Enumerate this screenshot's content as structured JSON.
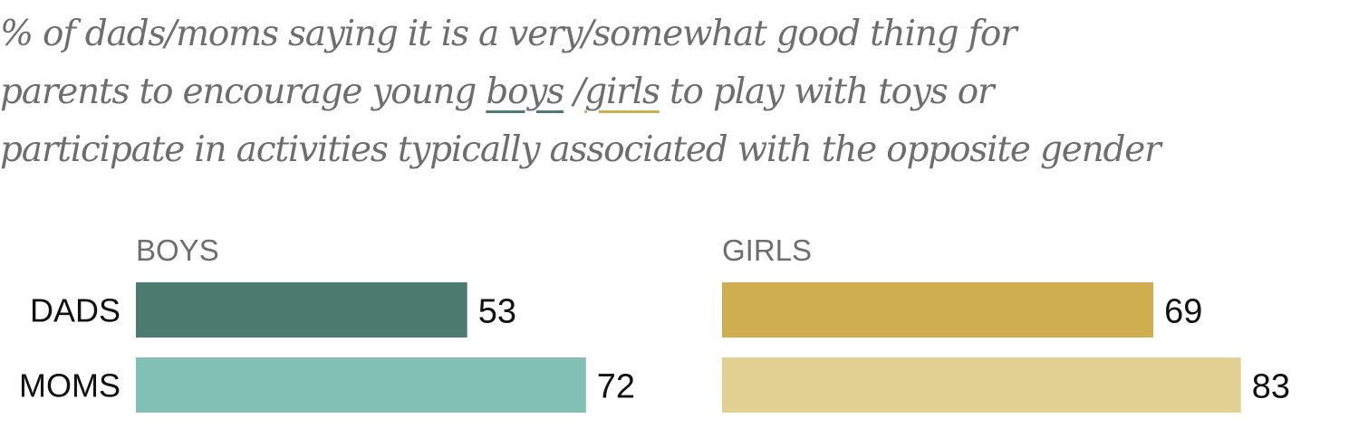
{
  "subtitle": {
    "line1": "% of dads/moms saying it is a very/somewhat good thing for",
    "line2_pre": "parents to encourage young ",
    "line2_boys": "boys",
    "line2_sep": " /",
    "line2_girls": "girls",
    "line2_post": " to play with toys or",
    "line3": "participate in activities typically associated with the opposite gender"
  },
  "colors": {
    "dads_boys": "#4d7b70",
    "moms_boys": "#82bfb5",
    "dads_girls": "#cfae4f",
    "moms_girls": "#e3d093",
    "boys_underline": "#4d7b70",
    "girls_underline": "#cfae4f"
  },
  "chart_data": {
    "type": "bar",
    "orientation": "horizontal",
    "categories": [
      "DADS",
      "MOMS"
    ],
    "panels": [
      {
        "title": "BOYS",
        "series": [
          {
            "category": "DADS",
            "value": 53
          },
          {
            "category": "MOMS",
            "value": 72
          }
        ]
      },
      {
        "title": "GIRLS",
        "series": [
          {
            "category": "DADS",
            "value": 69
          },
          {
            "category": "MOMS",
            "value": 83
          }
        ]
      }
    ],
    "xlim": [
      0,
      100
    ],
    "grid": false,
    "legend": "none"
  }
}
